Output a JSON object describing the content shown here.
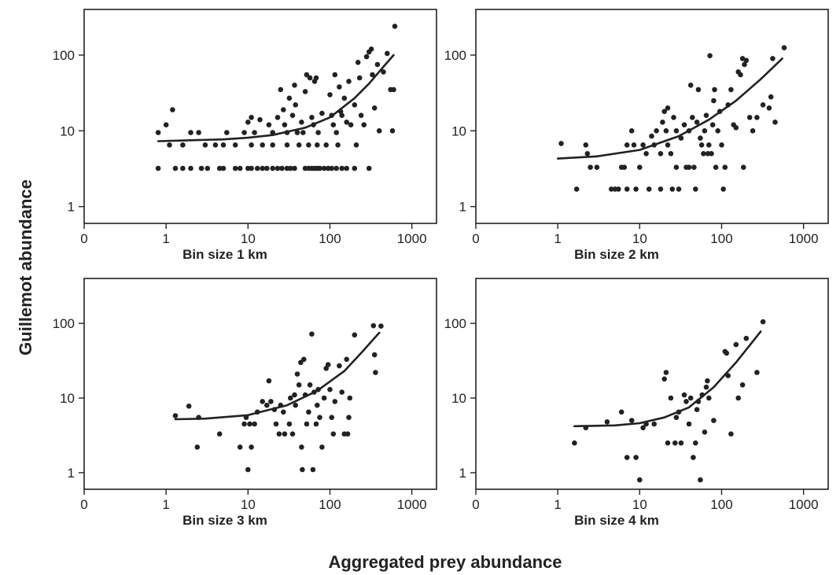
{
  "figure": {
    "ylabel": "Guillemot abundance",
    "xlabel": "Aggregated prey abundance"
  },
  "chart_data": [
    {
      "type": "scatter",
      "title": "Bin size 1 km",
      "xscale": "log",
      "yscale": "log",
      "xticks": [
        "0",
        "1",
        "10",
        "100",
        "1000"
      ],
      "yticks": [
        "1",
        "10",
        "100"
      ],
      "xlim": [
        0.1,
        2000
      ],
      "ylim": [
        0.6,
        400
      ],
      "points": [
        [
          0.8,
          9.5
        ],
        [
          1,
          12
        ],
        [
          1.2,
          19
        ],
        [
          1.1,
          6.5
        ],
        [
          1.6,
          6.5
        ],
        [
          2,
          9.5
        ],
        [
          2.5,
          9.5
        ],
        [
          3,
          6.5
        ],
        [
          4,
          6.5
        ],
        [
          5,
          6.5
        ],
        [
          5.5,
          9.5
        ],
        [
          7,
          6.5
        ],
        [
          9,
          9.5
        ],
        [
          10,
          13
        ],
        [
          11,
          15
        ],
        [
          11,
          6.5
        ],
        [
          12,
          9.5
        ],
        [
          14,
          14
        ],
        [
          15,
          6.5
        ],
        [
          18,
          12
        ],
        [
          20,
          9.5
        ],
        [
          20,
          6.5
        ],
        [
          23,
          15
        ],
        [
          25,
          35
        ],
        [
          27,
          19
        ],
        [
          28,
          12
        ],
        [
          30,
          9.5
        ],
        [
          30,
          6.5
        ],
        [
          32,
          27
        ],
        [
          35,
          16
        ],
        [
          37,
          40
        ],
        [
          38,
          22
        ],
        [
          40,
          9.5
        ],
        [
          42,
          6.5
        ],
        [
          45,
          13
        ],
        [
          47,
          9.5
        ],
        [
          50,
          33
        ],
        [
          52,
          55
        ],
        [
          55,
          6.5
        ],
        [
          57,
          50
        ],
        [
          60,
          15
        ],
        [
          63,
          12
        ],
        [
          65,
          45
        ],
        [
          68,
          50
        ],
        [
          70,
          6.5
        ],
        [
          72,
          9.5
        ],
        [
          80,
          17
        ],
        [
          90,
          6.5
        ],
        [
          100,
          30
        ],
        [
          105,
          16
        ],
        [
          110,
          12
        ],
        [
          115,
          55
        ],
        [
          120,
          9.5
        ],
        [
          125,
          6.5
        ],
        [
          130,
          38
        ],
        [
          135,
          18
        ],
        [
          140,
          16
        ],
        [
          150,
          27
        ],
        [
          160,
          13
        ],
        [
          170,
          45
        ],
        [
          180,
          12
        ],
        [
          200,
          22
        ],
        [
          210,
          6.5
        ],
        [
          220,
          80
        ],
        [
          230,
          50
        ],
        [
          240,
          16
        ],
        [
          260,
          12
        ],
        [
          280,
          95
        ],
        [
          300,
          110
        ],
        [
          320,
          120
        ],
        [
          330,
          55
        ],
        [
          350,
          20
        ],
        [
          380,
          75
        ],
        [
          400,
          10
        ],
        [
          450,
          60
        ],
        [
          500,
          105
        ],
        [
          550,
          35
        ],
        [
          600,
          35
        ],
        [
          620,
          240
        ],
        [
          580,
          10
        ],
        [
          0.8,
          3.2
        ],
        [
          1.3,
          3.2
        ],
        [
          1.6,
          3.2
        ],
        [
          2,
          3.2
        ],
        [
          2.7,
          3.2
        ],
        [
          3.2,
          3.2
        ],
        [
          4.5,
          3.2
        ],
        [
          5,
          3.2
        ],
        [
          7,
          3.2
        ],
        [
          8,
          3.2
        ],
        [
          10,
          3.2
        ],
        [
          11,
          3.2
        ],
        [
          13,
          3.2
        ],
        [
          15,
          3.2
        ],
        [
          17,
          3.2
        ],
        [
          20,
          3.2
        ],
        [
          23,
          3.2
        ],
        [
          26,
          3.2
        ],
        [
          30,
          3.2
        ],
        [
          33,
          3.2
        ],
        [
          37,
          3.2
        ],
        [
          50,
          3.2
        ],
        [
          55,
          3.2
        ],
        [
          60,
          3.2
        ],
        [
          65,
          3.2
        ],
        [
          70,
          3.2
        ],
        [
          75,
          3.2
        ],
        [
          85,
          3.2
        ],
        [
          95,
          3.2
        ],
        [
          105,
          3.2
        ],
        [
          120,
          3.2
        ],
        [
          140,
          3.2
        ],
        [
          160,
          3.2
        ],
        [
          200,
          3.2
        ],
        [
          300,
          3.2
        ]
      ],
      "curve": [
        [
          0.8,
          7.3
        ],
        [
          2,
          7.5
        ],
        [
          5,
          7.7
        ],
        [
          10,
          8.1
        ],
        [
          20,
          8.8
        ],
        [
          50,
          11
        ],
        [
          100,
          15
        ],
        [
          200,
          27
        ],
        [
          300,
          42
        ],
        [
          450,
          70
        ],
        [
          600,
          100
        ]
      ]
    },
    {
      "type": "scatter",
      "title": "Bin size 2 km",
      "xscale": "log",
      "yscale": "log",
      "xticks": [
        "0",
        "1",
        "10",
        "100",
        "1000"
      ],
      "yticks": [
        "1",
        "10",
        "100"
      ],
      "xlim": [
        0.1,
        2000
      ],
      "ylim": [
        0.6,
        400
      ],
      "points": [
        [
          1.1,
          6.8
        ],
        [
          1.7,
          1.7
        ],
        [
          2.2,
          6.5
        ],
        [
          2.3,
          5
        ],
        [
          2.5,
          3.3
        ],
        [
          3,
          3.3
        ],
        [
          4.5,
          1.7
        ],
        [
          5,
          1.7
        ],
        [
          5.5,
          1.7
        ],
        [
          6,
          3.3
        ],
        [
          6.5,
          3.3
        ],
        [
          7,
          6.5
        ],
        [
          7,
          1.7
        ],
        [
          8,
          10
        ],
        [
          8.5,
          6.5
        ],
        [
          9,
          1.7
        ],
        [
          10,
          3.3
        ],
        [
          11,
          6.5
        ],
        [
          12,
          5
        ],
        [
          13,
          1.7
        ],
        [
          14,
          8.5
        ],
        [
          15,
          6.5
        ],
        [
          16,
          10
        ],
        [
          18,
          1.7
        ],
        [
          18,
          5
        ],
        [
          19,
          13
        ],
        [
          20,
          18
        ],
        [
          21,
          10
        ],
        [
          22,
          20
        ],
        [
          22,
          6.5
        ],
        [
          24,
          5
        ],
        [
          25,
          1.7
        ],
        [
          26,
          15
        ],
        [
          28,
          10
        ],
        [
          28,
          3.3
        ],
        [
          30,
          1.7
        ],
        [
          32,
          8
        ],
        [
          35,
          12
        ],
        [
          37,
          3.3
        ],
        [
          40,
          10
        ],
        [
          40,
          3.3
        ],
        [
          42,
          40
        ],
        [
          44,
          15
        ],
        [
          46,
          3.3
        ],
        [
          48,
          1.7
        ],
        [
          50,
          13
        ],
        [
          52,
          35
        ],
        [
          55,
          8
        ],
        [
          57,
          6.5
        ],
        [
          60,
          5
        ],
        [
          62,
          10
        ],
        [
          65,
          16
        ],
        [
          68,
          5
        ],
        [
          70,
          6.5
        ],
        [
          72,
          98
        ],
        [
          75,
          5
        ],
        [
          78,
          12
        ],
        [
          80,
          25
        ],
        [
          82,
          35
        ],
        [
          85,
          3.3
        ],
        [
          90,
          10
        ],
        [
          95,
          18
        ],
        [
          100,
          6.5
        ],
        [
          105,
          1.7
        ],
        [
          110,
          3.3
        ],
        [
          120,
          22
        ],
        [
          130,
          35
        ],
        [
          140,
          12
        ],
        [
          150,
          11
        ],
        [
          160,
          60
        ],
        [
          170,
          55
        ],
        [
          180,
          90
        ],
        [
          185,
          3.3
        ],
        [
          190,
          75
        ],
        [
          200,
          85
        ],
        [
          220,
          15
        ],
        [
          240,
          10
        ],
        [
          270,
          15
        ],
        [
          320,
          22
        ],
        [
          380,
          20
        ],
        [
          400,
          28
        ],
        [
          450,
          13
        ],
        [
          420,
          90
        ],
        [
          580,
          125
        ]
      ],
      "curve": [
        [
          1,
          4.3
        ],
        [
          3,
          4.6
        ],
        [
          10,
          5.6
        ],
        [
          30,
          8.5
        ],
        [
          70,
          14
        ],
        [
          150,
          25
        ],
        [
          300,
          48
        ],
        [
          550,
          90
        ]
      ]
    },
    {
      "type": "scatter",
      "title": "Bin size 3 km",
      "xscale": "log",
      "yscale": "log",
      "xticks": [
        "0",
        "1",
        "10",
        "100",
        "1000"
      ],
      "yticks": [
        "1",
        "10",
        "100"
      ],
      "xlim": [
        0.1,
        2000
      ],
      "ylim": [
        0.6,
        400
      ],
      "points": [
        [
          1.3,
          5.8
        ],
        [
          1.9,
          7.8
        ],
        [
          2.4,
          2.2
        ],
        [
          2.5,
          5.5
        ],
        [
          4.5,
          3.3
        ],
        [
          8,
          2.2
        ],
        [
          9,
          4.5
        ],
        [
          9.5,
          5.5
        ],
        [
          10,
          1.1
        ],
        [
          10.5,
          4.5
        ],
        [
          11,
          2.2
        ],
        [
          12,
          4.5
        ],
        [
          13,
          6.5
        ],
        [
          15,
          9
        ],
        [
          17,
          8
        ],
        [
          18,
          17
        ],
        [
          19,
          9
        ],
        [
          21,
          7
        ],
        [
          22,
          4.5
        ],
        [
          24,
          3.3
        ],
        [
          25,
          8
        ],
        [
          27,
          6.5
        ],
        [
          28,
          3.3
        ],
        [
          32,
          4.5
        ],
        [
          33,
          10
        ],
        [
          35,
          3.3
        ],
        [
          37,
          11
        ],
        [
          38,
          8
        ],
        [
          40,
          21
        ],
        [
          42,
          15
        ],
        [
          44,
          30
        ],
        [
          45,
          2.2
        ],
        [
          46,
          1.1
        ],
        [
          48,
          33
        ],
        [
          50,
          11
        ],
        [
          52,
          4.5
        ],
        [
          55,
          6.5
        ],
        [
          57,
          15
        ],
        [
          60,
          72
        ],
        [
          62,
          1.1
        ],
        [
          64,
          12
        ],
        [
          68,
          4.5
        ],
        [
          70,
          8
        ],
        [
          72,
          13
        ],
        [
          75,
          5.5
        ],
        [
          80,
          2.2
        ],
        [
          85,
          10
        ],
        [
          90,
          25
        ],
        [
          95,
          28
        ],
        [
          100,
          13
        ],
        [
          105,
          5.5
        ],
        [
          110,
          3.3
        ],
        [
          115,
          9
        ],
        [
          130,
          27
        ],
        [
          140,
          12
        ],
        [
          150,
          3.3
        ],
        [
          160,
          33
        ],
        [
          165,
          3.3
        ],
        [
          170,
          5.5
        ],
        [
          175,
          10
        ],
        [
          200,
          70
        ],
        [
          340,
          93
        ],
        [
          350,
          38
        ],
        [
          360,
          22
        ],
        [
          420,
          92
        ]
      ],
      "curve": [
        [
          1.3,
          5.2
        ],
        [
          3,
          5.3
        ],
        [
          10,
          5.9
        ],
        [
          30,
          8
        ],
        [
          70,
          12.5
        ],
        [
          150,
          23
        ],
        [
          250,
          42
        ],
        [
          400,
          75
        ]
      ]
    },
    {
      "type": "scatter",
      "title": "Bin size 4 km",
      "xscale": "log",
      "yscale": "log",
      "xticks": [
        "0",
        "1",
        "10",
        "100",
        "1000"
      ],
      "yticks": [
        "1",
        "10",
        "100"
      ],
      "xlim": [
        0.1,
        2000
      ],
      "ylim": [
        0.6,
        400
      ],
      "points": [
        [
          1.6,
          2.5
        ],
        [
          2.2,
          4
        ],
        [
          4,
          4.8
        ],
        [
          6,
          6.5
        ],
        [
          7,
          1.6
        ],
        [
          8,
          5
        ],
        [
          9,
          1.6
        ],
        [
          10,
          0.8
        ],
        [
          11,
          4
        ],
        [
          12,
          4.5
        ],
        [
          15,
          4.5
        ],
        [
          20,
          18
        ],
        [
          21,
          22
        ],
        [
          22,
          2.5
        ],
        [
          24,
          10
        ],
        [
          27,
          2.5
        ],
        [
          28,
          5.5
        ],
        [
          30,
          6.5
        ],
        [
          32,
          2.5
        ],
        [
          35,
          11
        ],
        [
          37,
          9
        ],
        [
          40,
          4.5
        ],
        [
          42,
          10
        ],
        [
          45,
          1.6
        ],
        [
          48,
          2.5
        ],
        [
          50,
          7
        ],
        [
          52,
          9
        ],
        [
          55,
          0.8
        ],
        [
          58,
          11
        ],
        [
          62,
          3.5
        ],
        [
          65,
          14
        ],
        [
          67,
          17
        ],
        [
          70,
          10
        ],
        [
          80,
          5
        ],
        [
          110,
          42
        ],
        [
          115,
          40
        ],
        [
          120,
          20
        ],
        [
          130,
          3.3
        ],
        [
          150,
          52
        ],
        [
          160,
          10
        ],
        [
          180,
          15
        ],
        [
          200,
          63
        ],
        [
          270,
          22
        ],
        [
          320,
          105
        ]
      ],
      "curve": [
        [
          1.6,
          4.2
        ],
        [
          5,
          4.3
        ],
        [
          10,
          4.6
        ],
        [
          20,
          5.5
        ],
        [
          40,
          7.5
        ],
        [
          80,
          14
        ],
        [
          150,
          30
        ],
        [
          300,
          78
        ]
      ]
    }
  ]
}
